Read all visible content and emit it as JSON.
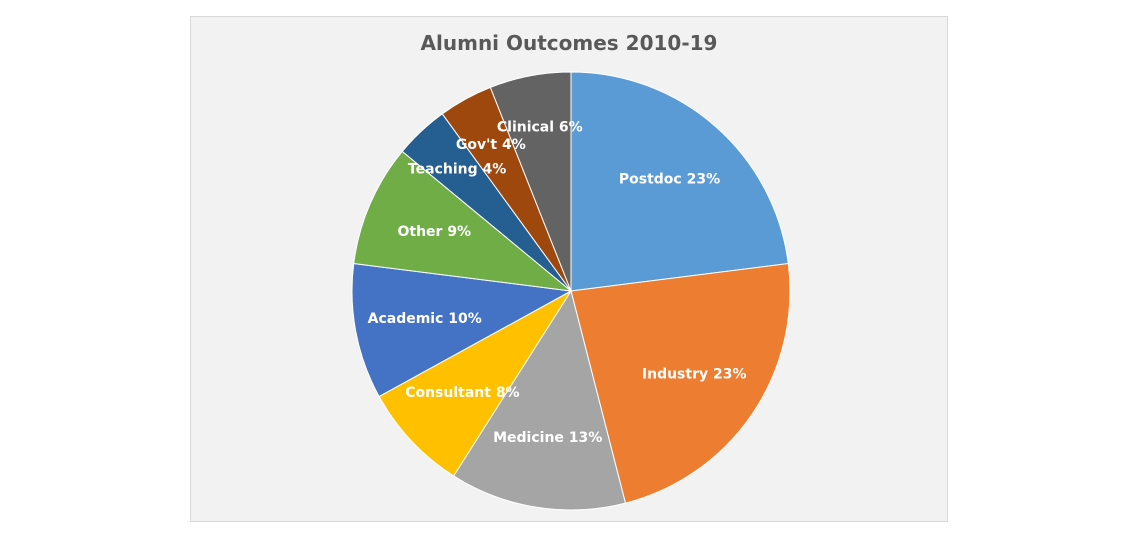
{
  "chart_data": {
    "type": "pie",
    "title": "Alumni Outcomes 2010-19",
    "slices": [
      {
        "label": "Postdoc 23%",
        "category": "Postdoc",
        "value": 23,
        "color": "#5b9bd5"
      },
      {
        "label": "Industry 23%",
        "category": "Industry",
        "value": 23,
        "color": "#ed7d31"
      },
      {
        "label": "Medicine 13%",
        "category": "Medicine",
        "value": 13,
        "color": "#a5a5a5"
      },
      {
        "label": "Consultant 8%",
        "category": "Consultant",
        "value": 8,
        "color": "#ffc000"
      },
      {
        "label": "Academic  10%",
        "category": "Academic",
        "value": 10,
        "color": "#4472c4"
      },
      {
        "label": "Other  9%",
        "category": "Other",
        "value": 9,
        "color": "#70ad47"
      },
      {
        "label": "Teaching 4%",
        "category": "Teaching",
        "value": 4,
        "color": "#255e91"
      },
      {
        "label": "Gov't 4%",
        "category": "Gov't",
        "value": 4,
        "color": "#9e480e"
      },
      {
        "label": "Clinical 6%",
        "category": "Clinical",
        "value": 6,
        "color": "#636363"
      }
    ],
    "legend": "none",
    "labels_position": "inside"
  }
}
